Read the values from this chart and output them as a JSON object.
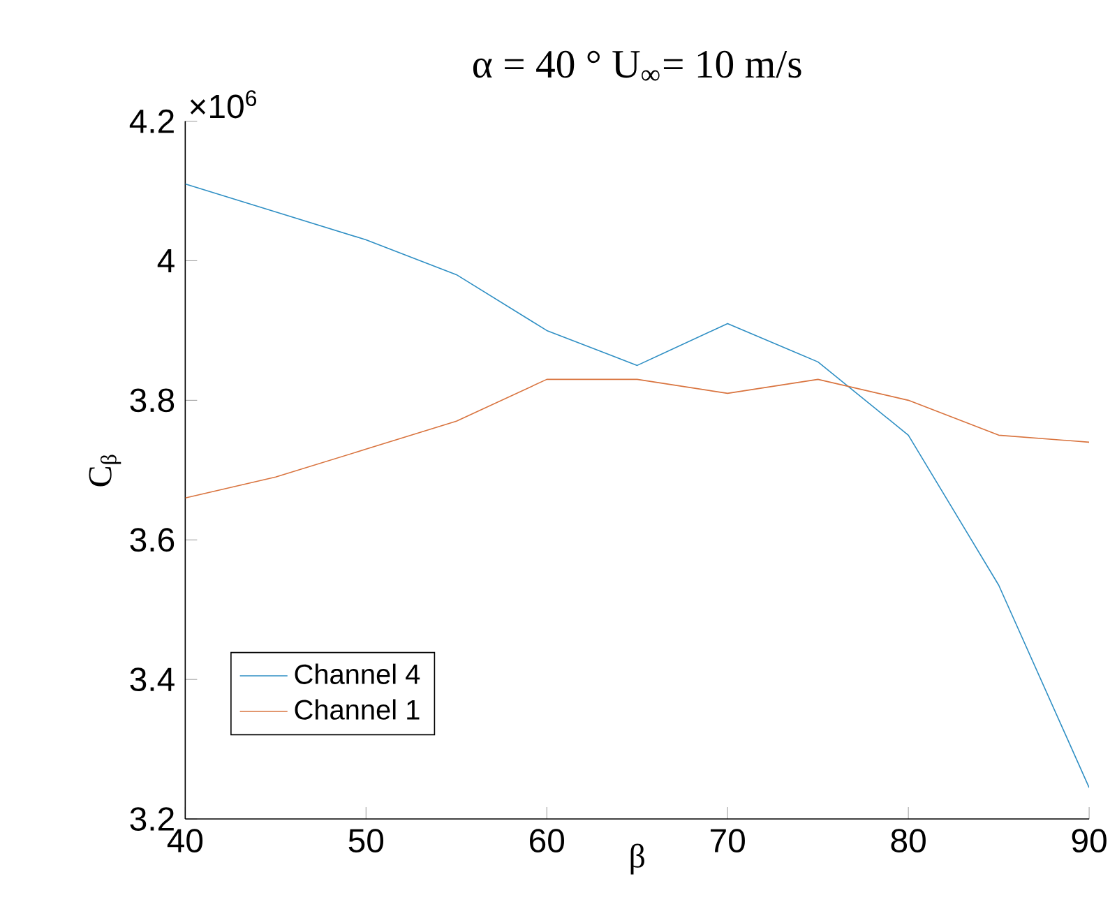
{
  "chart_data": {
    "type": "line",
    "title": "α = 40 °    U$_{∞}$= 10 m/s",
    "xlabel": "β",
    "ylabel": "C$_{β}$",
    "annotations": [
      "×10$^{6}$"
    ],
    "x": [
      40,
      45,
      50,
      55,
      60,
      65,
      70,
      75,
      80,
      85,
      90
    ],
    "series": [
      {
        "name": "Channel 4",
        "color": "#2f8fc4",
        "values": [
          4.11,
          4.07,
          4.03,
          3.98,
          3.9,
          3.85,
          3.91,
          3.855,
          3.75,
          3.535,
          3.245
        ]
      },
      {
        "name": "Channel 1",
        "color": "#d9743f",
        "values": [
          3.66,
          3.69,
          3.73,
          3.77,
          3.83,
          3.83,
          3.81,
          3.83,
          3.8,
          3.75,
          3.74
        ]
      }
    ],
    "xlim": [
      40,
      90
    ],
    "ylim": [
      3.2,
      4.2
    ],
    "xticks": [
      40,
      50,
      60,
      70,
      80,
      90
    ],
    "yticks": [
      3.2,
      3.4,
      3.6,
      3.8,
      4,
      4.2
    ],
    "legend": "bottom left",
    "grid": false,
    "marker": "none",
    "line_style": "solid"
  }
}
